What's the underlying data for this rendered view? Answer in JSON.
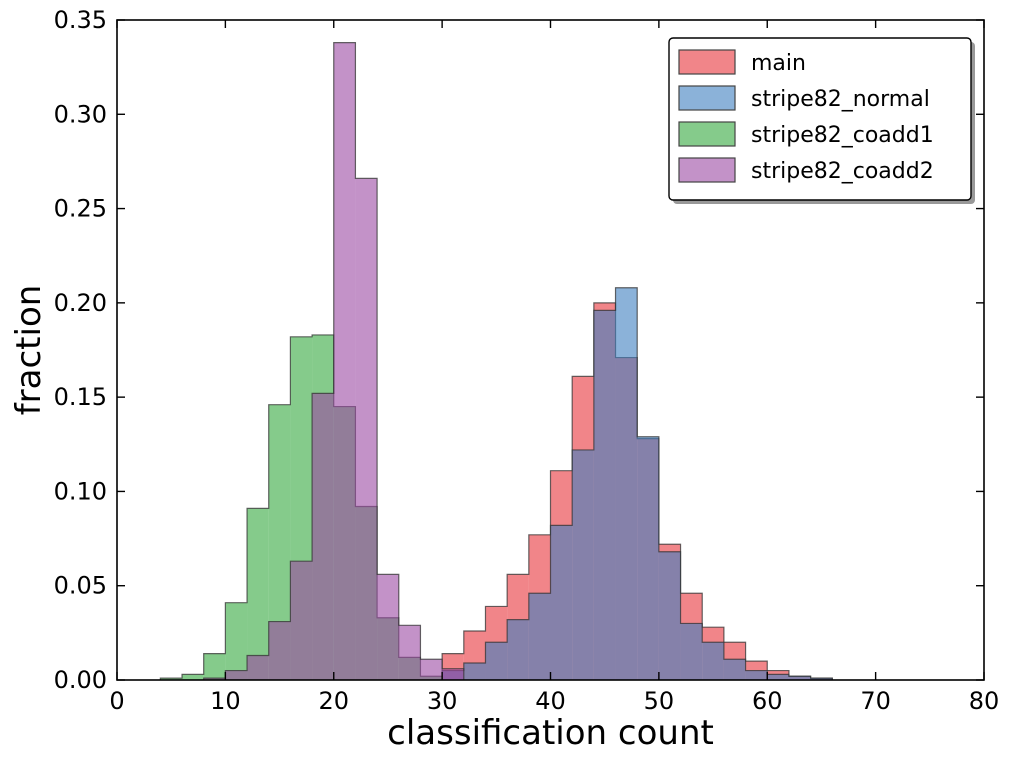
{
  "chart_data": {
    "type": "histogram",
    "xlabel": "classification count",
    "ylabel": "fraction",
    "xlim": [
      0,
      80
    ],
    "ylim": [
      0,
      0.35
    ],
    "xticks": [
      "0",
      "10",
      "20",
      "30",
      "40",
      "50",
      "60",
      "70",
      "80"
    ],
    "yticks": [
      "0.00",
      "0.05",
      "0.10",
      "0.15",
      "0.20",
      "0.25",
      "0.30",
      "0.35"
    ],
    "legend_position": "top-right",
    "series": [
      {
        "name": "main",
        "color": "#e8333a",
        "bin_edges": [
          30,
          32,
          34,
          36,
          38,
          40,
          42,
          44,
          46,
          48,
          50,
          52,
          54,
          56,
          58,
          60,
          62,
          64,
          66
        ],
        "values": [
          0.014,
          0.026,
          0.039,
          0.056,
          0.077,
          0.111,
          0.161,
          0.2,
          0.171,
          0.128,
          0.072,
          0.046,
          0.028,
          0.02,
          0.01,
          0.005,
          0.002,
          0.001
        ]
      },
      {
        "name": "stripe82_normal",
        "color": "#3d7fbf",
        "bin_edges": [
          30,
          32,
          34,
          36,
          38,
          40,
          42,
          44,
          46,
          48,
          50,
          52,
          54,
          56,
          58,
          60,
          62,
          64,
          66
        ],
        "values": [
          0.005,
          0.009,
          0.02,
          0.032,
          0.046,
          0.082,
          0.122,
          0.196,
          0.208,
          0.129,
          0.068,
          0.03,
          0.02,
          0.011,
          0.005,
          0.003,
          0.002,
          0.001
        ]
      },
      {
        "name": "stripe82_coadd1",
        "color": "#34a83e",
        "bin_edges": [
          4,
          6,
          8,
          10,
          12,
          14,
          16,
          18,
          20,
          22,
          24,
          26,
          28,
          30
        ],
        "values": [
          0.001,
          0.003,
          0.014,
          0.041,
          0.091,
          0.146,
          0.182,
          0.183,
          0.145,
          0.092,
          0.033,
          0.012,
          0.002
        ]
      },
      {
        "name": "stripe82_coadd2",
        "color": "#9b4aa3",
        "bin_edges": [
          8,
          10,
          12,
          14,
          16,
          18,
          20,
          22,
          24,
          26,
          28,
          30,
          32
        ],
        "values": [
          0.001,
          0.005,
          0.013,
          0.031,
          0.063,
          0.152,
          0.338,
          0.266,
          0.056,
          0.029,
          0.011,
          0.006
        ]
      }
    ]
  }
}
